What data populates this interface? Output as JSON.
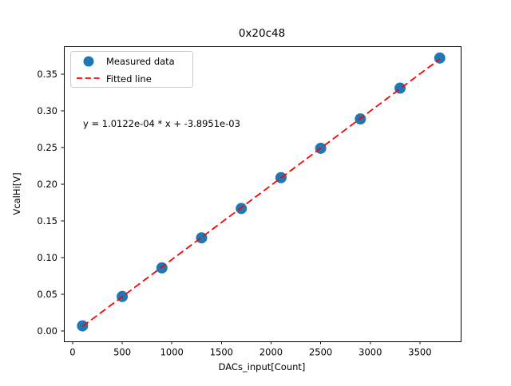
{
  "chart_data": {
    "type": "scatter",
    "title": "0x20c48",
    "xlabel": "DACs_input[Count]",
    "ylabel": "VcalHi[V]",
    "x": [
      100,
      500,
      900,
      1300,
      1700,
      2100,
      2500,
      2900,
      3300,
      3700
    ],
    "series": [
      {
        "name": "Measured data",
        "type": "scatter",
        "marker": "circle",
        "color": "#1f77b4",
        "values": [
          0.007,
          0.047,
          0.086,
          0.127,
          0.167,
          0.209,
          0.249,
          0.289,
          0.331,
          0.372
        ]
      },
      {
        "name": "Fitted line",
        "type": "line",
        "style": "dashed",
        "color": "#ff0000",
        "fit": {
          "slope": 0.00010122,
          "intercept": -0.0038951
        }
      }
    ],
    "annotation": {
      "text": "y = 1.0122e-04 * x + -3.8951e-03",
      "x": 105,
      "y": 0.277
    },
    "xticks": [
      0,
      500,
      1000,
      1500,
      2000,
      2500,
      3000,
      3500
    ],
    "yticks": [
      "0.00",
      "0.05",
      "0.10",
      "0.15",
      "0.20",
      "0.25",
      "0.30",
      "0.35"
    ],
    "xlim": [
      -88,
      3911
    ],
    "ylim": [
      -0.0141,
      0.3881
    ],
    "grid": false,
    "legend": {
      "position": "upper left",
      "entries": [
        "Measured data",
        "Fitted line"
      ]
    },
    "colors": {
      "axis": "#000000",
      "text": "#000000",
      "legend_border": "#cccccc",
      "background": "#ffffff"
    }
  }
}
